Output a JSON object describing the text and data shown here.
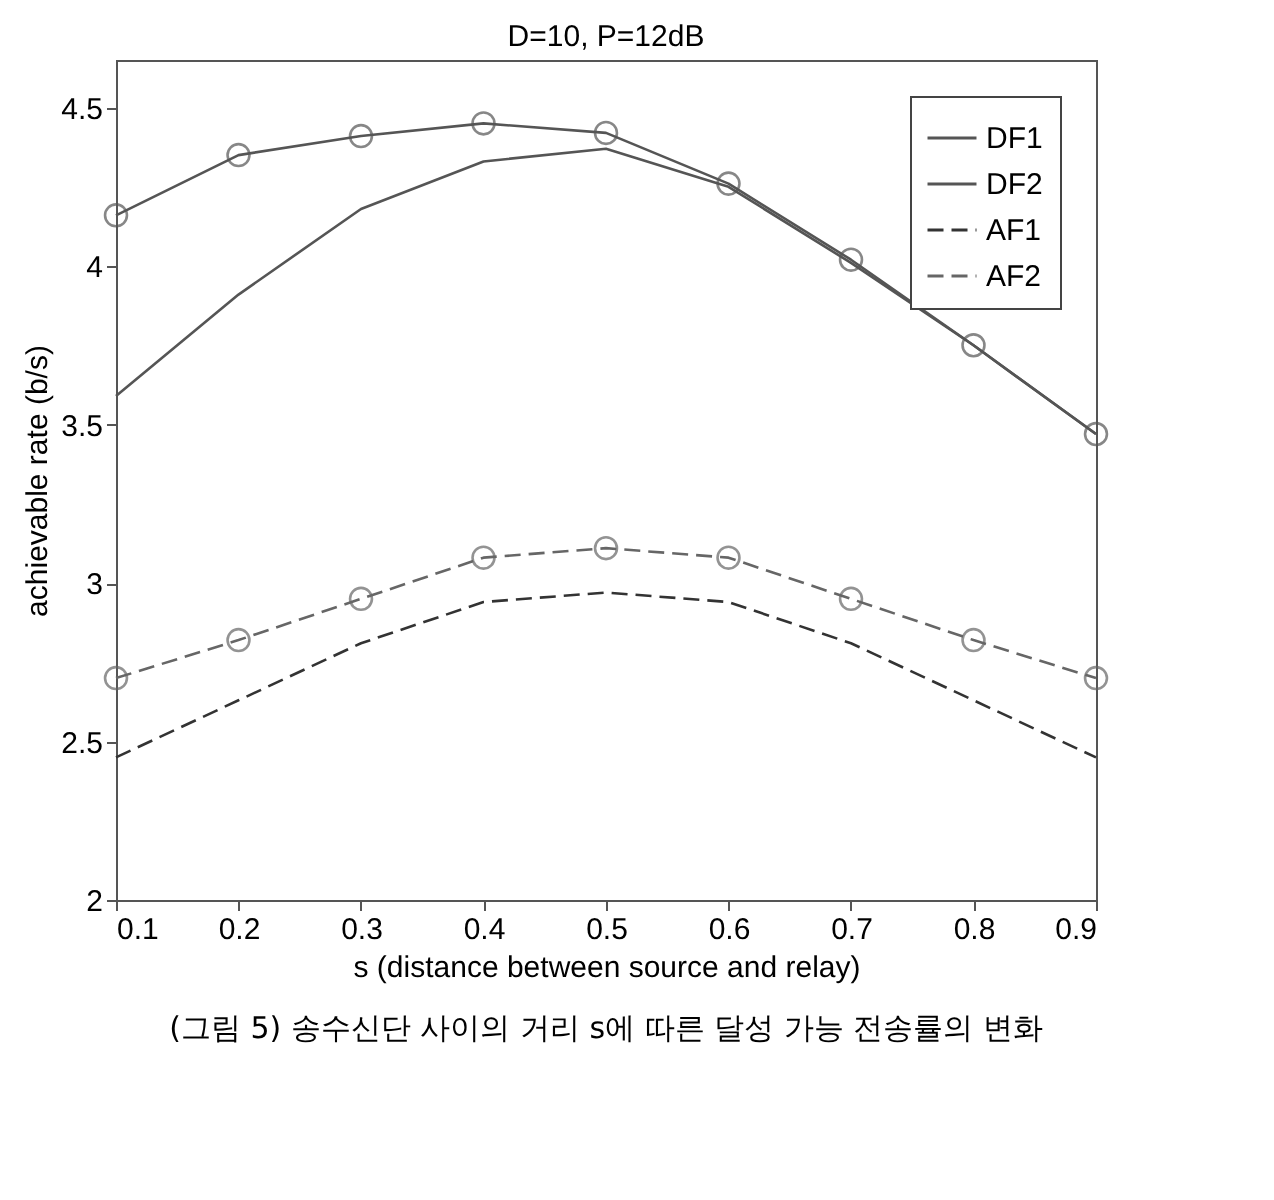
{
  "chart_data": {
    "type": "line",
    "title": "D=10, P=12dB",
    "xlabel": "s (distance between source and relay)",
    "ylabel": "achievable rate (b/s)",
    "x": [
      0.1,
      0.2,
      0.3,
      0.4,
      0.5,
      0.6,
      0.7,
      0.8,
      0.9
    ],
    "xlim": [
      0.1,
      0.9
    ],
    "xticks": [
      0.1,
      0.2,
      0.3,
      0.4,
      0.5,
      0.6,
      0.7,
      0.8,
      0.9
    ],
    "ylim": [
      2,
      4.65
    ],
    "yticks": [
      2,
      2.5,
      3,
      3.5,
      4,
      4.5
    ],
    "grid": false,
    "legend": "top right",
    "series": [
      {
        "name": "DF1",
        "color": "#555555",
        "marker": "none",
        "line_style": "solid",
        "values": [
          3.59,
          3.91,
          4.18,
          4.33,
          4.37,
          4.25,
          4.01,
          3.75,
          3.47
        ]
      },
      {
        "name": "DF2",
        "color": "#555555",
        "marker": "circle",
        "line_style": "solid",
        "values": [
          4.16,
          4.35,
          4.41,
          4.45,
          4.42,
          4.26,
          4.02,
          3.75,
          3.47
        ]
      },
      {
        "name": "AF1",
        "color": "#333333",
        "marker": "none",
        "line_style": "dashed",
        "values": [
          2.45,
          2.63,
          2.81,
          2.94,
          2.97,
          2.94,
          2.81,
          2.63,
          2.45
        ]
      },
      {
        "name": "AF2",
        "color": "#666666",
        "marker": "circle",
        "line_style": "dashed",
        "values": [
          2.7,
          2.82,
          2.95,
          3.08,
          3.11,
          3.08,
          2.95,
          2.82,
          2.7
        ]
      }
    ],
    "annotations": [
      "(그림 5) 송수신단 사이의 거리 s에 따른 달성 가능 전송률의 변화"
    ]
  }
}
